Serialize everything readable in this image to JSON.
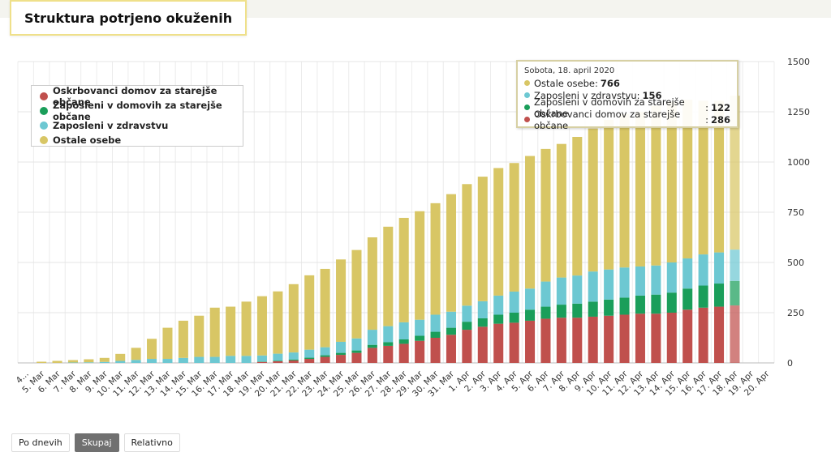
{
  "page": {
    "title": "Struktura potrjeno okuženih"
  },
  "buttons": [
    {
      "label": "Po dnevih",
      "active": false
    },
    {
      "label": "Skupaj",
      "active": true
    },
    {
      "label": "Relativno",
      "active": false
    }
  ],
  "tooltip": {
    "date": "Sobota, 18. april 2020",
    "rows": [
      {
        "label": "Ostale osebe",
        "value": "766",
        "color": "#d8c665"
      },
      {
        "label": "Zaposleni v zdravstvu",
        "value": "156",
        "color": "#6dc8d2"
      },
      {
        "label": "Zaposleni v domovih za starejše občane",
        "value": "122",
        "color": "#1a9e5a"
      },
      {
        "label": "Oskrbovanci domov za starejše občane",
        "value": "286",
        "color": "#c0504d"
      }
    ]
  },
  "chart_data": {
    "type": "bar",
    "stacked": true,
    "categories": [
      "4. Mar",
      "5. Mar",
      "6. Mar",
      "7. Mar",
      "8. Mar",
      "9. Mar",
      "10. Mar",
      "11. Mar",
      "12. Mar",
      "13. Mar",
      "14. Mar",
      "15. Mar",
      "16. Mar",
      "17. Mar",
      "18. Mar",
      "19. Mar",
      "20. Mar",
      "21. Mar",
      "22. Mar",
      "23. Mar",
      "24. Mar",
      "25. Mar",
      "26. Mar",
      "27. Mar",
      "28. Mar",
      "29. Mar",
      "30. Mar",
      "31. Mar",
      "1. Apr",
      "2. Apr",
      "3. Apr",
      "4. Apr",
      "5. Apr",
      "6. Apr",
      "7. Apr",
      "8. Apr",
      "9. Apr",
      "10. Apr",
      "11. Apr",
      "12. Apr",
      "13. Apr",
      "14. Apr",
      "15. Apr",
      "16. Apr",
      "17. Apr",
      "18. Apr",
      "19. Apr",
      "20. Apr"
    ],
    "tick_labels": [
      "4...",
      "5. Mar",
      "6. Mar",
      "7. Mar",
      "8. Mar",
      "9. Mar",
      "10. Mar",
      "11. Mar",
      "12. Mar",
      "13. Mar",
      "14. Mar",
      "15. Mar",
      "16. Mar",
      "17. Mar",
      "18. Mar",
      "19. Mar",
      "20. Mar",
      "21. Mar",
      "22. Mar",
      "23. Mar",
      "24. Mar",
      "25. Mar",
      "26. Mar",
      "27. Mar",
      "28. Mar",
      "29. Mar",
      "30. Mar",
      "31. Mar",
      "1. Apr",
      "2. Apr",
      "3. Apr",
      "4. Apr",
      "5. Apr",
      "6. Apr",
      "7. Apr",
      "8. Apr",
      "9. Apr",
      "10. Apr",
      "11. Apr",
      "12. Apr",
      "13. Apr",
      "14. Apr",
      "15. Apr",
      "16. Apr",
      "17. Apr",
      "18. Apr",
      "19. Apr",
      "20. Apr"
    ],
    "series": [
      {
        "name": "Oskrbovanci domov za starejše občane",
        "color": "#c0504d",
        "values": [
          null,
          0,
          0,
          0,
          0,
          0,
          0,
          0,
          0,
          0,
          0,
          0,
          0,
          0,
          0,
          5,
          8,
          12,
          20,
          30,
          40,
          50,
          75,
          85,
          95,
          110,
          125,
          140,
          165,
          180,
          195,
          200,
          210,
          220,
          225,
          225,
          230,
          235,
          240,
          245,
          245,
          250,
          265,
          275,
          280,
          286,
          null,
          null
        ]
      },
      {
        "name": "Zaposleni v domovih za starejše občane",
        "color": "#1a9e5a",
        "values": [
          null,
          0,
          0,
          0,
          0,
          0,
          0,
          0,
          0,
          0,
          0,
          0,
          0,
          0,
          0,
          2,
          3,
          5,
          6,
          8,
          10,
          12,
          15,
          18,
          22,
          25,
          30,
          35,
          40,
          42,
          45,
          50,
          55,
          60,
          65,
          70,
          75,
          80,
          85,
          90,
          95,
          100,
          105,
          110,
          115,
          122,
          null,
          null
        ]
      },
      {
        "name": "Zaposleni v zdravstvu",
        "color": "#6dc8d2",
        "values": [
          null,
          0,
          0,
          2,
          3,
          5,
          10,
          15,
          20,
          20,
          25,
          30,
          30,
          35,
          35,
          30,
          35,
          35,
          40,
          40,
          55,
          60,
          75,
          80,
          85,
          80,
          85,
          80,
          80,
          85,
          95,
          105,
          105,
          125,
          135,
          140,
          150,
          150,
          150,
          145,
          145,
          150,
          150,
          155,
          155,
          156,
          null,
          null
        ]
      },
      {
        "name": "Ostale osebe",
        "color": "#d8c665",
        "values": [
          null,
          6,
          10,
          12,
          15,
          20,
          35,
          60,
          100,
          155,
          185,
          205,
          245,
          245,
          270,
          295,
          310,
          340,
          370,
          390,
          410,
          440,
          460,
          495,
          520,
          540,
          555,
          585,
          605,
          620,
          635,
          640,
          660,
          660,
          665,
          690,
          712,
          745,
          765,
          770,
          795,
          800,
          790,
          765,
          755,
          766,
          null,
          null
        ]
      }
    ],
    "highlighted_category": "18. Apr",
    "xlabel": "",
    "ylabel": "",
    "ylim": [
      0,
      1500
    ],
    "yticks": [
      0,
      250,
      500,
      750,
      1000,
      1250,
      1500
    ],
    "grid": true,
    "y_axis_side": "right",
    "legend_placement": "top-left"
  }
}
